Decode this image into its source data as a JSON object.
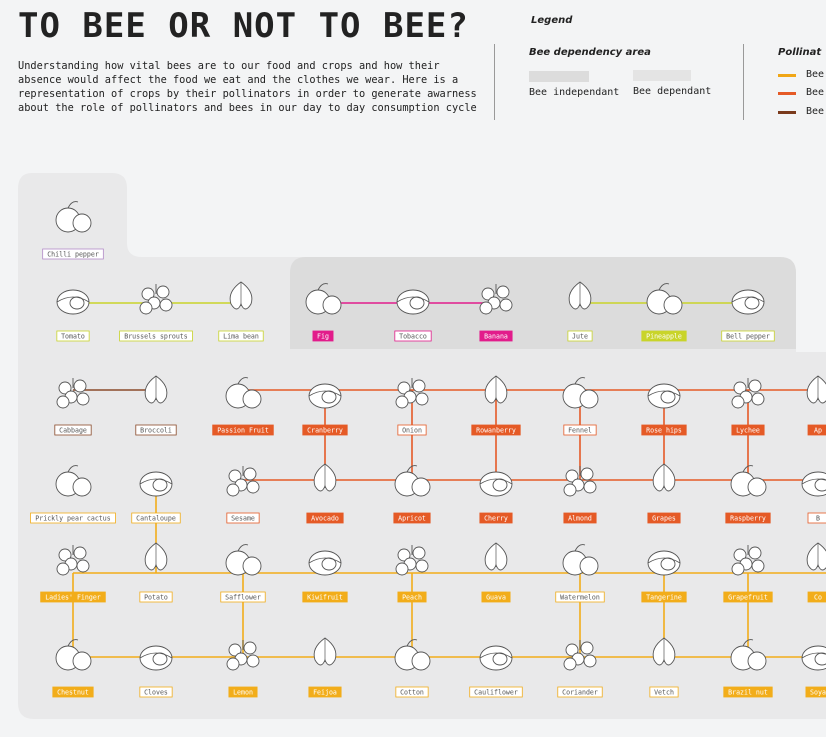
{
  "title": "TO BEE OR NOT TO BEE?",
  "intro": "Understanding how vital bees are to our food and crops and how their absence would affect the food we eat and the clothes we wear. Here is a representation of crops by their pollinators in order to generate awarness about the role of pollinators and bees in our day to day consumption cycle",
  "legend": {
    "title": "Legend",
    "area_title": "Bee dependency area",
    "independent": "Bee independant",
    "dependent": "Bee dependant",
    "pollinator_title": "Pollinat",
    "pollinators": [
      {
        "label": "Bee",
        "color": "#f0a616"
      },
      {
        "label": "Bee",
        "color": "#e55a26"
      },
      {
        "label": "Bee",
        "color": "#7a3a1c"
      }
    ]
  },
  "colors": {
    "yellow": "#f2ad1a",
    "orange": "#e55a26",
    "brown": "#8a4a2a",
    "pink": "#e21c8b",
    "lime": "#c9d42a",
    "lavender": "#b28ac8"
  },
  "crops": [
    {
      "label": "Chilli pepper",
      "style": "outline",
      "color": "lavender",
      "icon": "chilli-pepper-icon"
    },
    {
      "label": "Tomato",
      "style": "outline",
      "color": "lime",
      "icon": "tomato-icon"
    },
    {
      "label": "Brussels sprouts",
      "style": "outline",
      "color": "lime",
      "icon": "brussels-sprouts-icon"
    },
    {
      "label": "Lima bean",
      "style": "outline",
      "color": "lime",
      "icon": "lima-bean-icon"
    },
    {
      "label": "Fig",
      "style": "fill",
      "color": "pink",
      "icon": "fig-icon"
    },
    {
      "label": "Tobacco",
      "style": "outline",
      "color": "pink",
      "icon": "tobacco-icon"
    },
    {
      "label": "Banana",
      "style": "fill",
      "color": "pink",
      "icon": "banana-icon"
    },
    {
      "label": "Jute",
      "style": "outline",
      "color": "lime",
      "icon": "jute-icon"
    },
    {
      "label": "Pineapple",
      "style": "fill",
      "color": "lime",
      "icon": "pineapple-icon"
    },
    {
      "label": "Bell pepper",
      "style": "outline",
      "color": "lime",
      "icon": "bell-pepper-icon"
    },
    {
      "label": "Cabbage",
      "style": "outline",
      "color": "brown",
      "icon": "cabbage-icon"
    },
    {
      "label": "Broccoli",
      "style": "outline",
      "color": "brown",
      "icon": "broccoli-icon"
    },
    {
      "label": "Passion Fruit",
      "style": "fill",
      "color": "orange",
      "icon": "passion-fruit-icon"
    },
    {
      "label": "Cranberry",
      "style": "fill",
      "color": "orange",
      "icon": "cranberry-icon"
    },
    {
      "label": "Onion",
      "style": "outline",
      "color": "orange",
      "icon": "onion-icon"
    },
    {
      "label": "Rowanberry",
      "style": "fill",
      "color": "orange",
      "icon": "rowanberry-icon"
    },
    {
      "label": "Fennel",
      "style": "outline",
      "color": "orange",
      "icon": "fennel-icon"
    },
    {
      "label": "Rose hips",
      "style": "fill",
      "color": "orange",
      "icon": "rose-hips-icon"
    },
    {
      "label": "Lychee",
      "style": "fill",
      "color": "orange",
      "icon": "lychee-icon"
    },
    {
      "label": "Ap",
      "style": "fill",
      "color": "orange",
      "icon": "apple-icon"
    },
    {
      "label": "Prickly pear cactus",
      "style": "outline",
      "color": "yellow",
      "icon": "prickly-pear-icon"
    },
    {
      "label": "Cantaloupe",
      "style": "outline",
      "color": "yellow",
      "icon": "cantaloupe-icon"
    },
    {
      "label": "Sesame",
      "style": "outline",
      "color": "orange",
      "icon": "sesame-icon"
    },
    {
      "label": "Avocado",
      "style": "fill",
      "color": "orange",
      "icon": "avocado-icon"
    },
    {
      "label": "Apricot",
      "style": "fill",
      "color": "orange",
      "icon": "apricot-icon"
    },
    {
      "label": "Cherry",
      "style": "fill",
      "color": "orange",
      "icon": "cherry-icon"
    },
    {
      "label": "Almond",
      "style": "fill",
      "color": "orange",
      "icon": "almond-icon"
    },
    {
      "label": "Grapes",
      "style": "fill",
      "color": "orange",
      "icon": "grapes-icon"
    },
    {
      "label": "Raspberry",
      "style": "fill",
      "color": "orange",
      "icon": "raspberry-icon"
    },
    {
      "label": "B",
      "style": "outline",
      "color": "orange",
      "icon": "berry-icon"
    },
    {
      "label": "Ladies' Finger",
      "style": "fill",
      "color": "yellow",
      "icon": "ladies-finger-icon"
    },
    {
      "label": "Potato",
      "style": "outline",
      "color": "yellow",
      "icon": "potato-icon"
    },
    {
      "label": "Safflower",
      "style": "outline",
      "color": "yellow",
      "icon": "safflower-icon"
    },
    {
      "label": "Kiwifruit",
      "style": "fill",
      "color": "yellow",
      "icon": "kiwifruit-icon"
    },
    {
      "label": "Peach",
      "style": "fill",
      "color": "yellow",
      "icon": "peach-icon"
    },
    {
      "label": "Guava",
      "style": "fill",
      "color": "yellow",
      "icon": "guava-icon"
    },
    {
      "label": "Watermelon",
      "style": "outline",
      "color": "yellow",
      "icon": "watermelon-icon"
    },
    {
      "label": "Tangerine",
      "style": "fill",
      "color": "yellow",
      "icon": "tangerine-icon"
    },
    {
      "label": "Grapefruit",
      "style": "fill",
      "color": "yellow",
      "icon": "grapefruit-icon"
    },
    {
      "label": "Co",
      "style": "fill",
      "color": "yellow",
      "icon": "coconut-icon"
    },
    {
      "label": "Chestnut",
      "style": "fill",
      "color": "yellow",
      "icon": "chestnut-icon"
    },
    {
      "label": "Cloves",
      "style": "outline",
      "color": "yellow",
      "icon": "cloves-icon"
    },
    {
      "label": "Lemon",
      "style": "fill",
      "color": "yellow",
      "icon": "lemon-icon"
    },
    {
      "label": "Feijoa",
      "style": "fill",
      "color": "yellow",
      "icon": "feijoa-icon"
    },
    {
      "label": "Cotton",
      "style": "outline",
      "color": "yellow",
      "icon": "cotton-icon"
    },
    {
      "label": "Cauliflower",
      "style": "outline",
      "color": "yellow",
      "icon": "cauliflower-icon"
    },
    {
      "label": "Coriander",
      "style": "outline",
      "color": "yellow",
      "icon": "coriander-icon"
    },
    {
      "label": "Vetch",
      "style": "outline",
      "color": "yellow",
      "icon": "vetch-icon"
    },
    {
      "label": "Brazil nut",
      "style": "fill",
      "color": "yellow",
      "icon": "brazil-nut-icon"
    },
    {
      "label": "Soya",
      "style": "fill",
      "color": "yellow",
      "icon": "soya-icon"
    }
  ]
}
